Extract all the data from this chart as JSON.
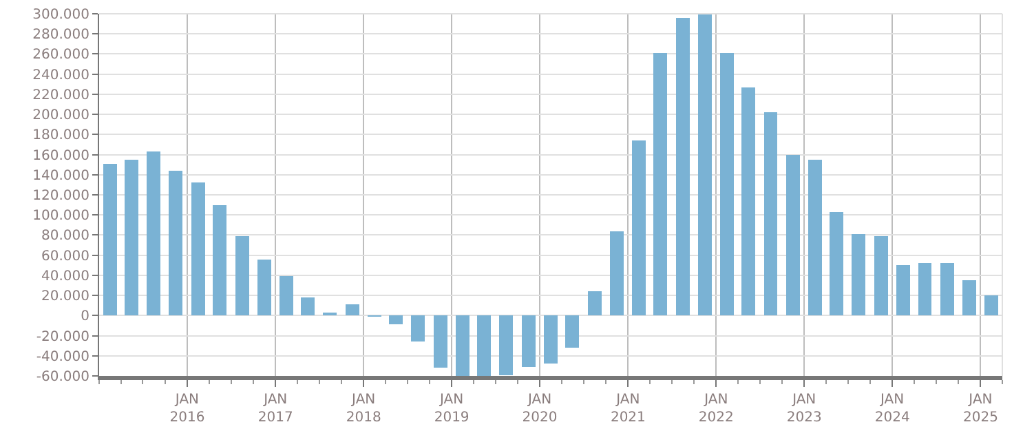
{
  "chart_data": {
    "type": "bar",
    "x": [
      "2015-02-15",
      "2015-05-15",
      "2015-08-15",
      "2015-11-15",
      "2016-02-15",
      "2016-05-15",
      "2016-08-15",
      "2016-11-15",
      "2017-02-15",
      "2017-05-15",
      "2017-08-15",
      "2017-11-15",
      "2018-02-15",
      "2018-05-15",
      "2018-08-15",
      "2018-11-15",
      "2019-02-15",
      "2019-05-15",
      "2019-08-15",
      "2019-11-15",
      "2020-02-15",
      "2020-05-15",
      "2020-08-15",
      "2020-11-15",
      "2021-02-15",
      "2021-05-15",
      "2021-08-15",
      "2021-11-15",
      "2022-02-15",
      "2022-05-15",
      "2022-08-15",
      "2022-11-15",
      "2023-02-15",
      "2023-05-15",
      "2023-08-15",
      "2023-11-15",
      "2024-02-15",
      "2024-05-15",
      "2024-08-15",
      "2024-11-15",
      "2025-02-15"
    ],
    "values": [
      151000,
      155000,
      163000,
      144000,
      132000,
      110000,
      79000,
      56000,
      39000,
      18000,
      3000,
      11000,
      -1000,
      -9000,
      -26000,
      -52000,
      -60000,
      -60000,
      -59000,
      -51000,
      -48000,
      -32000,
      24000,
      84000,
      174000,
      261000,
      296000,
      299000,
      261000,
      227000,
      202000,
      160000,
      155000,
      103000,
      81000,
      79000,
      50000,
      52000,
      52000,
      35000,
      20000
    ],
    "color": "#7ab2d4",
    "ylim": [
      -60000,
      300000
    ],
    "yticks": [
      {
        "value": -60000,
        "label": "-60.000"
      },
      {
        "value": -40000,
        "label": "-40.000"
      },
      {
        "value": -20000,
        "label": "-20.000"
      },
      0,
      {
        "value": 20000,
        "label": "20.000"
      },
      {
        "value": 40000,
        "label": "40.000"
      },
      {
        "value": 60000,
        "label": "60.000"
      },
      {
        "value": 80000,
        "label": "80.000"
      },
      {
        "value": 100000,
        "label": "100.000"
      },
      {
        "value": 120000,
        "label": "120.000"
      },
      {
        "value": 140000,
        "label": "140.000"
      },
      {
        "value": 160000,
        "label": "160.000"
      },
      {
        "value": 180000,
        "label": "180.000"
      },
      {
        "value": 200000,
        "label": "200.000"
      },
      {
        "value": 220000,
        "label": "220.000"
      },
      {
        "value": 240000,
        "label": "240.000"
      },
      {
        "value": 260000,
        "label": "260.000"
      },
      {
        "value": 280000,
        "label": "280.000"
      },
      {
        "value": 300000,
        "label": "300.000"
      }
    ],
    "xlim": [
      "2015-01-01",
      "2025-04-01"
    ],
    "xticks": [
      {
        "value": "2016-01-01",
        "label": "JAN\n2016"
      },
      {
        "value": "2017-01-01",
        "label": "JAN\n2017"
      },
      {
        "value": "2018-01-01",
        "label": "JAN\n2018"
      },
      {
        "value": "2019-01-01",
        "label": "JAN\n2019"
      },
      {
        "value": "2020-01-01",
        "label": "JAN\n2020"
      },
      {
        "value": "2021-01-01",
        "label": "JAN\n2021"
      },
      {
        "value": "2022-01-01",
        "label": "JAN\n2022"
      },
      {
        "value": "2023-01-01",
        "label": "JAN\n2023"
      },
      {
        "value": "2024-01-01",
        "label": "JAN\n2024"
      },
      {
        "value": "2025-01-01",
        "label": "JAN\n2025"
      }
    ],
    "grid": true
  }
}
